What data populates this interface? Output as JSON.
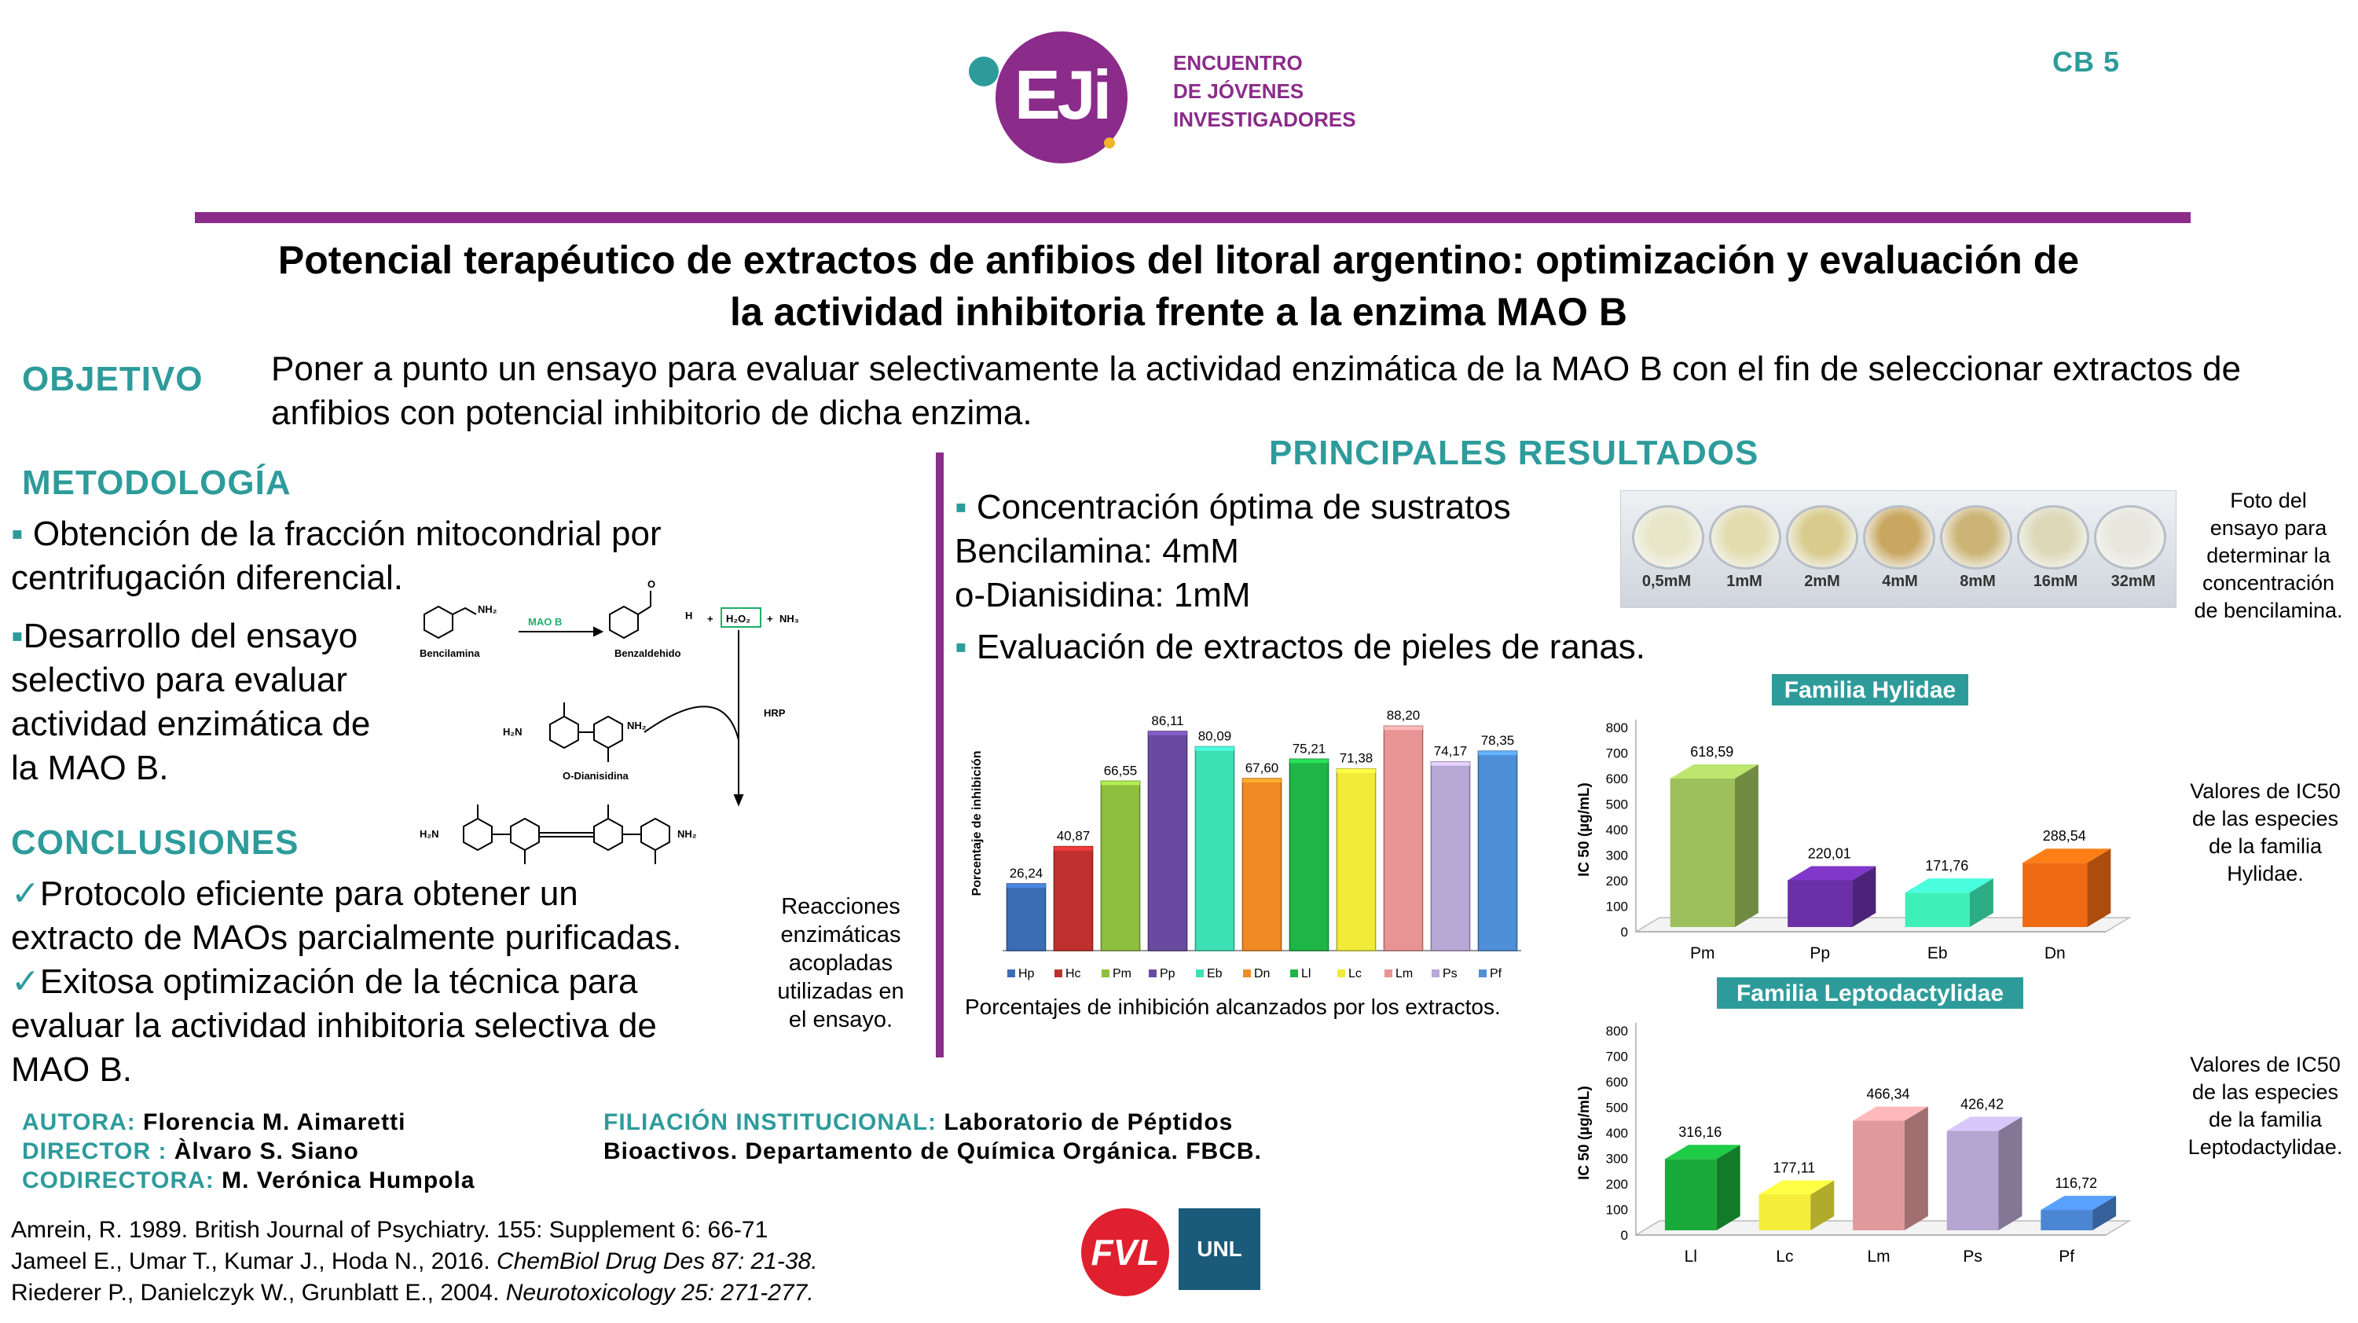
{
  "header": {
    "logo_letters": "EJi",
    "logo_text": [
      "ENCUENTRO",
      "DE JÓVENES",
      "INVESTIGADORES"
    ],
    "code": "CB 5",
    "accent": "#8b2b8a"
  },
  "title": [
    "Potencial terapéutico de extractos de anfibios del litoral argentino: optimización y evaluación de",
    "la actividad inhibitoria frente a la enzima MAO B"
  ],
  "objetivo": {
    "heading": "OBJETIVO",
    "lines": [
      "Poner a punto un ensayo para evaluar selectivamente la actividad enzimática de la MAO B con el fin de seleccionar extractos de",
      "anfibios con potencial inhibitorio de dicha enzima."
    ]
  },
  "metodologia": {
    "heading": "METODOLOGÍA",
    "item1": [
      "Obtención de la fracción mitocondrial por",
      "centrifugación diferencial."
    ],
    "item2": [
      "Desarrollo del ensayo",
      "selectivo para evaluar",
      "actividad enzimática de",
      "la MAO B."
    ]
  },
  "scheme": {
    "bencilamina": "Bencilamina",
    "benzaldehido": "Benzaldehido",
    "mao_b": "MAO B",
    "h2o2": "H₂O₂",
    "nh3": "NH₃",
    "plus": "+",
    "hrp": "HRP",
    "odianisidina": "O-Dianisidina",
    "nh2": "NH₂",
    "h2n": "H₂N",
    "h": "H",
    "o": "O",
    "caption": [
      "Reacciones",
      "enzimáticas",
      "acopladas",
      "utilizadas en",
      "el ensayo."
    ]
  },
  "conclusiones": {
    "heading": "CONCLUSIONES",
    "item1": [
      "Protocolo eficiente para obtener un",
      "extracto de MAOs parcialmente purificadas."
    ],
    "item2": [
      "Exitosa optimización de la técnica para",
      "evaluar la actividad inhibitoria selectiva de",
      "MAO B."
    ]
  },
  "authors": {
    "autora_label": "AUTORA:",
    "autora": "Florencia M. Aimaretti",
    "director_label": "DIRECTOR :",
    "director": "Àlvaro S. Siano",
    "codirectora_label": "CODIRECTORA:",
    "codirectora": "M. Verónica Humpola",
    "filiacion_label": "FILIACIÓN INSTITUCIONAL:",
    "filiacion": [
      "Laboratorio de Péptidos",
      "Bioactivos. Departamento de Química Orgánica. FBCB."
    ]
  },
  "references": [
    {
      "plain": "Amrein, R. 1989. British Journal of Psychiatry. 155: Supplement 6: 66-71",
      "italic": ""
    },
    {
      "plain": "Jameel E., Umar T., Kumar J., Hoda N., 2016. ",
      "italic": "ChemBiol Drug Des 87: 21-38."
    },
    {
      "plain": "Riederer P., Danielczyk W., Grunblatt E., 2004. ",
      "italic": "Neurotoxicology 25: 271-277."
    }
  ],
  "logos": {
    "fvl": "FVL",
    "unl": "UNL"
  },
  "resultados": {
    "heading": "PRINCIPALES RESULTADOS",
    "conc_line": "Concentración  óptima de sustratos",
    "bencilamina_line": "Bencilamina:  4mM",
    "odianisidina_line": "o-Dianisidina: 1mM",
    "eval_line": "Evaluación de extractos de pieles de ranas.",
    "photo_labels": [
      "0,5mM",
      "1mM",
      "2mM",
      "4mM",
      "8mM",
      "16mM",
      "32mM"
    ],
    "photo_caption": [
      "Foto del",
      "ensayo para",
      "determinar la",
      "concentración",
      "de bencilamina."
    ],
    "bar_caption": "Porcentajes de inhibición alcanzados por los extractos.",
    "hyl_caption": [
      "Valores de IC50",
      "de las especies",
      "de la  familia",
      "Hylidae."
    ],
    "lep_caption": [
      "Valores de IC50",
      "de las especies",
      "de la  familia",
      "Leptodactylidae."
    ]
  },
  "chart_data": [
    {
      "type": "bar",
      "ylabel": "Porcentaje de inhibición",
      "categories": [
        "Hp",
        "Hc",
        "Pm",
        "Pp",
        "Eb",
        "Dn",
        "Ll",
        "Lc",
        "Lm",
        "Ps",
        "Pf"
      ],
      "values": [
        26.24,
        40.87,
        66.55,
        86.11,
        80.09,
        67.6,
        75.21,
        71.38,
        88.2,
        74.17,
        78.35
      ],
      "value_labels": [
        "26,24",
        "40,87",
        "66,55",
        "86,11",
        "80,09",
        "67,60",
        "75,21",
        "71,38",
        "88,20",
        "74,17",
        "78,35"
      ],
      "colors": [
        "#3b6db5",
        "#c0302e",
        "#8fbf3f",
        "#6a4aa0",
        "#3ee0b5",
        "#f08a24",
        "#1fb547",
        "#f2ec38",
        "#e89494",
        "#b7a8d6",
        "#4f8fd8"
      ],
      "ylim": [
        0,
        100
      ],
      "legend": "bottom"
    },
    {
      "type": "bar",
      "title": "Familia Hylidae",
      "ylabel": "IC 50 (µg/mL)",
      "categories": [
        "Pm",
        "Pp",
        "Eb",
        "Dn"
      ],
      "values": [
        618.59,
        220.01,
        171.76,
        288.54
      ],
      "value_labels": [
        "618,59",
        "220,01",
        "171,76",
        "288,54"
      ],
      "colors": [
        "#9dc05c",
        "#6b2fa8",
        "#3ef0b8",
        "#ef6a12"
      ],
      "yticks": [
        0,
        100,
        200,
        300,
        400,
        500,
        600,
        700,
        800
      ],
      "ylim": [
        0,
        800
      ]
    },
    {
      "type": "bar",
      "title": "Familia Leptodactylidae",
      "ylabel": "IC 50 (µg/mL)",
      "categories": [
        "Ll",
        "Lc",
        "Lm",
        "Ps",
        "Pf"
      ],
      "values": [
        316.16,
        177.11,
        466.34,
        426.42,
        116.72
      ],
      "value_labels": [
        "316,16",
        "177,11",
        "466,34",
        "426,42",
        "116,72"
      ],
      "colors": [
        "#1aaa3a",
        "#f4ee3a",
        "#e19a9c",
        "#b4a6d0",
        "#4a86d4"
      ],
      "yticks": [
        0,
        100,
        200,
        300,
        400,
        500,
        600,
        700,
        800
      ],
      "ylim": [
        0,
        800
      ]
    }
  ]
}
